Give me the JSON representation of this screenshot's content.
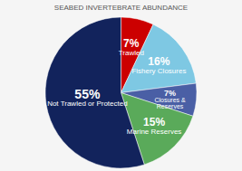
{
  "chart_data": {
    "type": "pie",
    "title": "SEABED INVERTEBRATE ABUNDANCE",
    "categories": [
      "Trawled",
      "Fishery Closures",
      "Closures &\nReserves",
      "Marine Reserves",
      "Not Trawled or Protected"
    ],
    "values": [
      7,
      16,
      7,
      15,
      55
    ],
    "value_labels": [
      "7%",
      "16%",
      "7%",
      "15%",
      "55%"
    ],
    "colors": [
      "#cc0000",
      "#7ec8e3",
      "#4a5fa5",
      "#5aaa5a",
      "#12235c"
    ],
    "data_labels": true
  }
}
